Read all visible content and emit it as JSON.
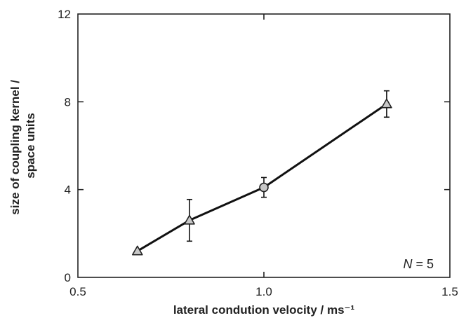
{
  "chart_data": {
    "type": "line",
    "title": "",
    "xlabel": "lateral condution velocity / ms⁻¹",
    "ylabel_lines": [
      "size of coupling kernel /",
      "space units"
    ],
    "xlim": [
      0.5,
      1.5
    ],
    "ylim": [
      0,
      12
    ],
    "xticks": [
      "0.5",
      "1.0",
      "1.5"
    ],
    "yticks": [
      "0",
      "4",
      "8",
      "12"
    ],
    "grid": false,
    "series": [
      {
        "x": [
          0.66,
          0.8,
          1.0,
          1.33
        ],
        "y": [
          1.2,
          2.6,
          4.1,
          7.9
        ],
        "yerr_low": [
          0,
          0.95,
          0.45,
          0.6
        ],
        "yerr_high": [
          0,
          0.95,
          0.45,
          0.6
        ],
        "markers": [
          "triangle",
          "triangle",
          "circle",
          "triangle"
        ]
      }
    ],
    "annotation": {
      "var": "N",
      "rest": " = 5"
    },
    "colors": {
      "line": "#111111",
      "marker_fill": "#c8c8c8",
      "text": "#222222"
    }
  }
}
